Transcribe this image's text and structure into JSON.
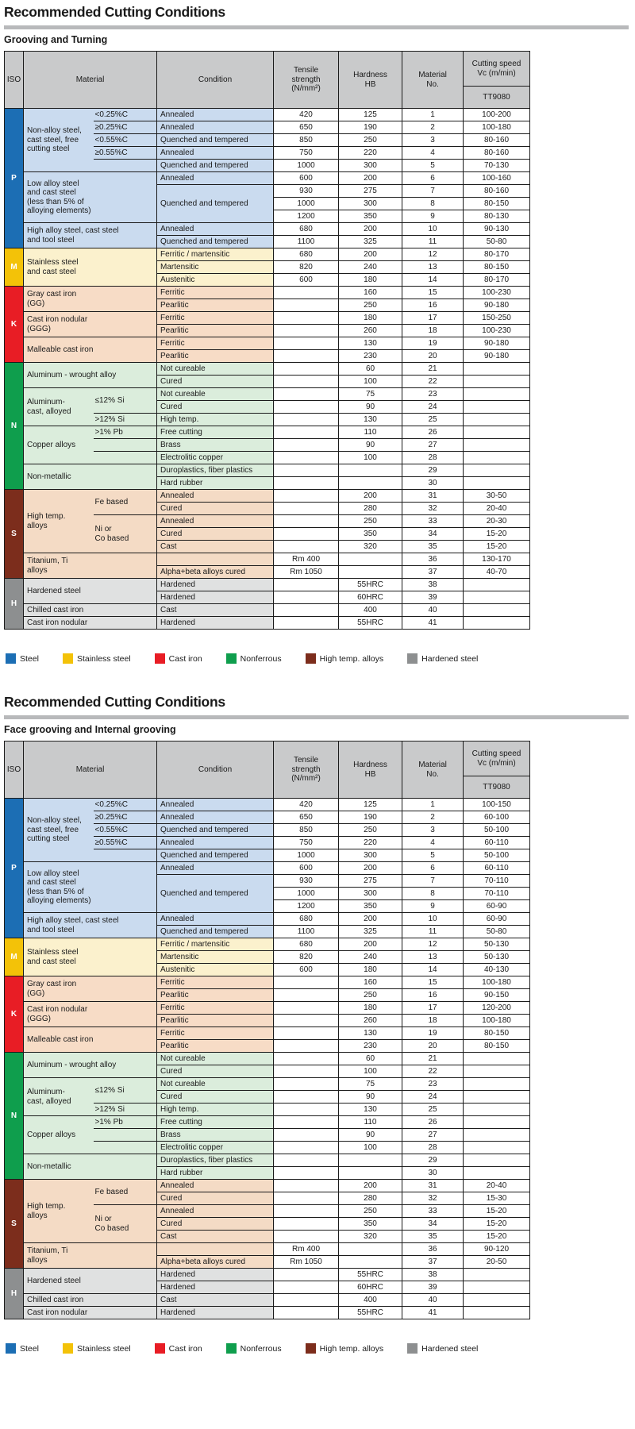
{
  "sections": [
    {
      "title": "Recommended Cutting Conditions",
      "subtitle": "Grooving and Turning",
      "speed_key": "speed1"
    },
    {
      "title": "Recommended Cutting Conditions",
      "subtitle": "Face grooving and Internal grooving",
      "speed_key": "speed2"
    }
  ],
  "table": {
    "header": {
      "iso": "ISO",
      "material": "Material",
      "condition": "Condition",
      "tensile": "Tensile\nstrength\n(N/mm²)",
      "hardness": "Hardness\nHB",
      "material_no": "Material\nNo.",
      "speed_group": "Cutting speed\nVc (m/min)",
      "speed_sub": "TT9080"
    },
    "iso_groups": {
      "P": {
        "label": "P",
        "rows": 11,
        "color": "#1c6eb4",
        "bg": "#cadbef"
      },
      "M": {
        "label": "M",
        "rows": 3,
        "color": "#f3c208",
        "bg": "#fbf1cd"
      },
      "K": {
        "label": "K",
        "rows": 6,
        "color": "#e81d25",
        "bg": "#f7dcc6"
      },
      "N": {
        "label": "N",
        "rows": 10,
        "color": "#0f9e4d",
        "bg": "#dbeddc"
      },
      "S": {
        "label": "S",
        "rows": 7,
        "color": "#7c2d1c",
        "bg": "#f4dbc5"
      },
      "H": {
        "label": "H",
        "rows": 4,
        "color": "#8d8f90",
        "bg": "#e0e1e1"
      }
    },
    "rows": [
      {
        "iso": "P",
        "mat": {
          "text": "Non-alloy steel,\ncast steel, free\ncutting steel",
          "rows": 5
        },
        "sub": {
          "text": "<0.25%C"
        },
        "cond": {
          "text": "Annealed"
        },
        "tensile": "420",
        "hardness": "125",
        "no": "1",
        "speed1": "100-200",
        "speed2": "100-150"
      },
      {
        "sub": {
          "text": "≥0.25%C"
        },
        "cond": {
          "text": "Annealed"
        },
        "tensile": "650",
        "hardness": "190",
        "no": "2",
        "speed1": "100-180",
        "speed2": "60-100"
      },
      {
        "sub": {
          "text": "<0.55%C"
        },
        "cond": {
          "text": "Quenched and tempered"
        },
        "tensile": "850",
        "hardness": "250",
        "no": "3",
        "speed1": "80-160",
        "speed2": "50-100"
      },
      {
        "sub": {
          "text": "≥0.55%C"
        },
        "cond": {
          "text": "Annealed"
        },
        "tensile": "750",
        "hardness": "220",
        "no": "4",
        "speed1": "80-160",
        "speed2": "60-110"
      },
      {
        "sub": {
          "text": ""
        },
        "cond": {
          "text": "Quenched and tempered"
        },
        "tensile": "1000",
        "hardness": "300",
        "no": "5",
        "speed1": "70-130",
        "speed2": "50-100"
      },
      {
        "mat": {
          "text": "Low alloy steel\nand cast steel\n(less than 5% of\nalloying elements)",
          "rows": 4,
          "full": true
        },
        "cond": {
          "text": "Annealed"
        },
        "tensile": "600",
        "hardness": "200",
        "no": "6",
        "speed1": "100-160",
        "speed2": "60-110"
      },
      {
        "cond": {
          "text": "Quenched and tempered",
          "rows": 3
        },
        "tensile": "930",
        "hardness": "275",
        "no": "7",
        "speed1": "80-160",
        "speed2": "70-110"
      },
      {
        "tensile": "1000",
        "hardness": "300",
        "no": "8",
        "speed1": "80-150",
        "speed2": "70-110"
      },
      {
        "tensile": "1200",
        "hardness": "350",
        "no": "9",
        "speed1": "80-130",
        "speed2": "60-90"
      },
      {
        "mat": {
          "text": "High alloy steel, cast steel\nand tool steel",
          "rows": 2,
          "full": true
        },
        "cond": {
          "text": "Annealed"
        },
        "tensile": "680",
        "hardness": "200",
        "no": "10",
        "speed1": "90-130",
        "speed2": "60-90"
      },
      {
        "cond": {
          "text": "Quenched and tempered"
        },
        "tensile": "1100",
        "hardness": "325",
        "no": "11",
        "speed1": "50-80",
        "speed2": "50-80"
      },
      {
        "iso": "M",
        "mat": {
          "text": "Stainless steel\nand cast steel",
          "rows": 3,
          "full": true
        },
        "cond": {
          "text": "Ferritic / martensitic"
        },
        "tensile": "680",
        "hardness": "200",
        "no": "12",
        "speed1": "80-170",
        "speed2": "50-130"
      },
      {
        "cond": {
          "text": "Martensitic"
        },
        "tensile": "820",
        "hardness": "240",
        "no": "13",
        "speed1": "80-150",
        "speed2": "50-130"
      },
      {
        "cond": {
          "text": "Austenitic"
        },
        "tensile": "600",
        "hardness": "180",
        "no": "14",
        "speed1": "80-170",
        "speed2": "40-130"
      },
      {
        "iso": "K",
        "mat": {
          "text": "Gray cast iron\n(GG)",
          "rows": 2,
          "full": true
        },
        "cond": {
          "text": "Ferritic"
        },
        "tensile": "",
        "hardness": "160",
        "no": "15",
        "speed1": "100-230",
        "speed2": "100-180"
      },
      {
        "cond": {
          "text": "Pearlitic"
        },
        "tensile": "",
        "hardness": "250",
        "no": "16",
        "speed1": "90-180",
        "speed2": "90-150"
      },
      {
        "mat": {
          "text": "Cast iron nodular\n(GGG)",
          "rows": 2,
          "full": true
        },
        "cond": {
          "text": "Ferritic"
        },
        "tensile": "",
        "hardness": "180",
        "no": "17",
        "speed1": "150-250",
        "speed2": "120-200"
      },
      {
        "cond": {
          "text": "Pearlitic"
        },
        "tensile": "",
        "hardness": "260",
        "no": "18",
        "speed1": "100-230",
        "speed2": "100-180"
      },
      {
        "mat": {
          "text": "Malleable cast iron",
          "rows": 2,
          "full": true
        },
        "cond": {
          "text": "Ferritic"
        },
        "tensile": "",
        "hardness": "130",
        "no": "19",
        "speed1": "90-180",
        "speed2": "80-150"
      },
      {
        "cond": {
          "text": "Pearlitic"
        },
        "tensile": "",
        "hardness": "230",
        "no": "20",
        "speed1": "90-180",
        "speed2": "80-150"
      },
      {
        "iso": "N",
        "mat": {
          "text": "Aluminum - wrought alloy",
          "rows": 2,
          "full": true
        },
        "cond": {
          "text": "Not cureable"
        },
        "tensile": "",
        "hardness": "60",
        "no": "21",
        "speed1": "",
        "speed2": ""
      },
      {
        "cond": {
          "text": "Cured"
        },
        "tensile": "",
        "hardness": "100",
        "no": "22",
        "speed1": "",
        "speed2": ""
      },
      {
        "mat": {
          "text": "Aluminum-\ncast, alloyed",
          "rows": 3
        },
        "sub": {
          "text": "≤12% Si",
          "rows": 2
        },
        "cond": {
          "text": "Not cureable"
        },
        "tensile": "",
        "hardness": "75",
        "no": "23",
        "speed1": "",
        "speed2": ""
      },
      {
        "cond": {
          "text": "Cured"
        },
        "tensile": "",
        "hardness": "90",
        "no": "24",
        "speed1": "",
        "speed2": ""
      },
      {
        "sub": {
          "text": ">12% Si"
        },
        "cond": {
          "text": "High temp."
        },
        "tensile": "",
        "hardness": "130",
        "no": "25",
        "speed1": "",
        "speed2": ""
      },
      {
        "mat": {
          "text": "Copper alloys",
          "rows": 3
        },
        "sub": {
          "text": ">1% Pb"
        },
        "cond": {
          "text": "Free cutting"
        },
        "tensile": "",
        "hardness": "110",
        "no": "26",
        "speed1": "",
        "speed2": ""
      },
      {
        "sub": {
          "text": ""
        },
        "cond": {
          "text": "Brass"
        },
        "tensile": "",
        "hardness": "90",
        "no": "27",
        "speed1": "",
        "speed2": ""
      },
      {
        "sub": {
          "text": ""
        },
        "cond": {
          "text": "Electrolitic copper"
        },
        "tensile": "",
        "hardness": "100",
        "no": "28",
        "speed1": "",
        "speed2": ""
      },
      {
        "mat": {
          "text": "Non-metallic",
          "rows": 2,
          "full": true
        },
        "cond": {
          "text": "Duroplastics, fiber plastics"
        },
        "tensile": "",
        "hardness": "",
        "no": "29",
        "speed1": "",
        "speed2": ""
      },
      {
        "cond": {
          "text": "Hard rubber"
        },
        "tensile": "",
        "hardness": "",
        "no": "30",
        "speed1": "",
        "speed2": ""
      },
      {
        "iso": "S",
        "mat": {
          "text": "High temp.\nalloys",
          "rows": 5
        },
        "sub": {
          "text": "Fe based",
          "rows": 2
        },
        "cond": {
          "text": "Annealed"
        },
        "tensile": "",
        "hardness": "200",
        "no": "31",
        "speed1": "30-50",
        "speed2": "20-40"
      },
      {
        "cond": {
          "text": "Cured"
        },
        "tensile": "",
        "hardness": "280",
        "no": "32",
        "speed1": "20-40",
        "speed2": "15-30"
      },
      {
        "sub": {
          "text": "Ni or\nCo based",
          "rows": 3
        },
        "cond": {
          "text": "Annealed"
        },
        "tensile": "",
        "hardness": "250",
        "no": "33",
        "speed1": "20-30",
        "speed2": "15-20"
      },
      {
        "cond": {
          "text": "Cured"
        },
        "tensile": "",
        "hardness": "350",
        "no": "34",
        "speed1": "15-20",
        "speed2": "15-20"
      },
      {
        "cond": {
          "text": "Cast"
        },
        "tensile": "",
        "hardness": "320",
        "no": "35",
        "speed1": "15-20",
        "speed2": "15-20"
      },
      {
        "mat": {
          "text": "Titanium, Ti\nalloys",
          "rows": 2,
          "full": true
        },
        "cond": {
          "text": ""
        },
        "tensile": "Rm 400",
        "hardness": "",
        "no": "36",
        "speed1": "130-170",
        "speed2": "90-120"
      },
      {
        "cond": {
          "text": "Alpha+beta alloys cured"
        },
        "tensile": "Rm 1050",
        "hardness": "",
        "no": "37",
        "speed1": "40-70",
        "speed2": "20-50"
      },
      {
        "iso": "H",
        "mat": {
          "text": "Hardened steel",
          "rows": 2,
          "full": true
        },
        "cond": {
          "text": "Hardened"
        },
        "tensile": "",
        "hardness": "55HRC",
        "no": "38",
        "speed1": "",
        "speed2": ""
      },
      {
        "cond": {
          "text": "Hardened"
        },
        "tensile": "",
        "hardness": "60HRC",
        "no": "39",
        "speed1": "",
        "speed2": ""
      },
      {
        "mat": {
          "text": "Chilled cast iron",
          "rows": 1,
          "full": true
        },
        "cond": {
          "text": "Cast"
        },
        "tensile": "",
        "hardness": "400",
        "no": "40",
        "speed1": "",
        "speed2": ""
      },
      {
        "mat": {
          "text": "Cast iron nodular",
          "rows": 1,
          "full": true
        },
        "cond": {
          "text": "Hardened"
        },
        "tensile": "",
        "hardness": "55HRC",
        "no": "41",
        "speed1": "",
        "speed2": ""
      }
    ]
  },
  "legend": {
    "items": [
      {
        "label": "Steel",
        "color": "#1c6eb4"
      },
      {
        "label": "Stainless steel",
        "color": "#f3c208"
      },
      {
        "label": "Cast iron",
        "color": "#e81d25"
      },
      {
        "label": "Nonferrous",
        "color": "#0f9e4d"
      },
      {
        "label": "High temp. alloys",
        "color": "#7c2d1c"
      },
      {
        "label": "Hardened steel",
        "color": "#8d8f90"
      }
    ]
  }
}
